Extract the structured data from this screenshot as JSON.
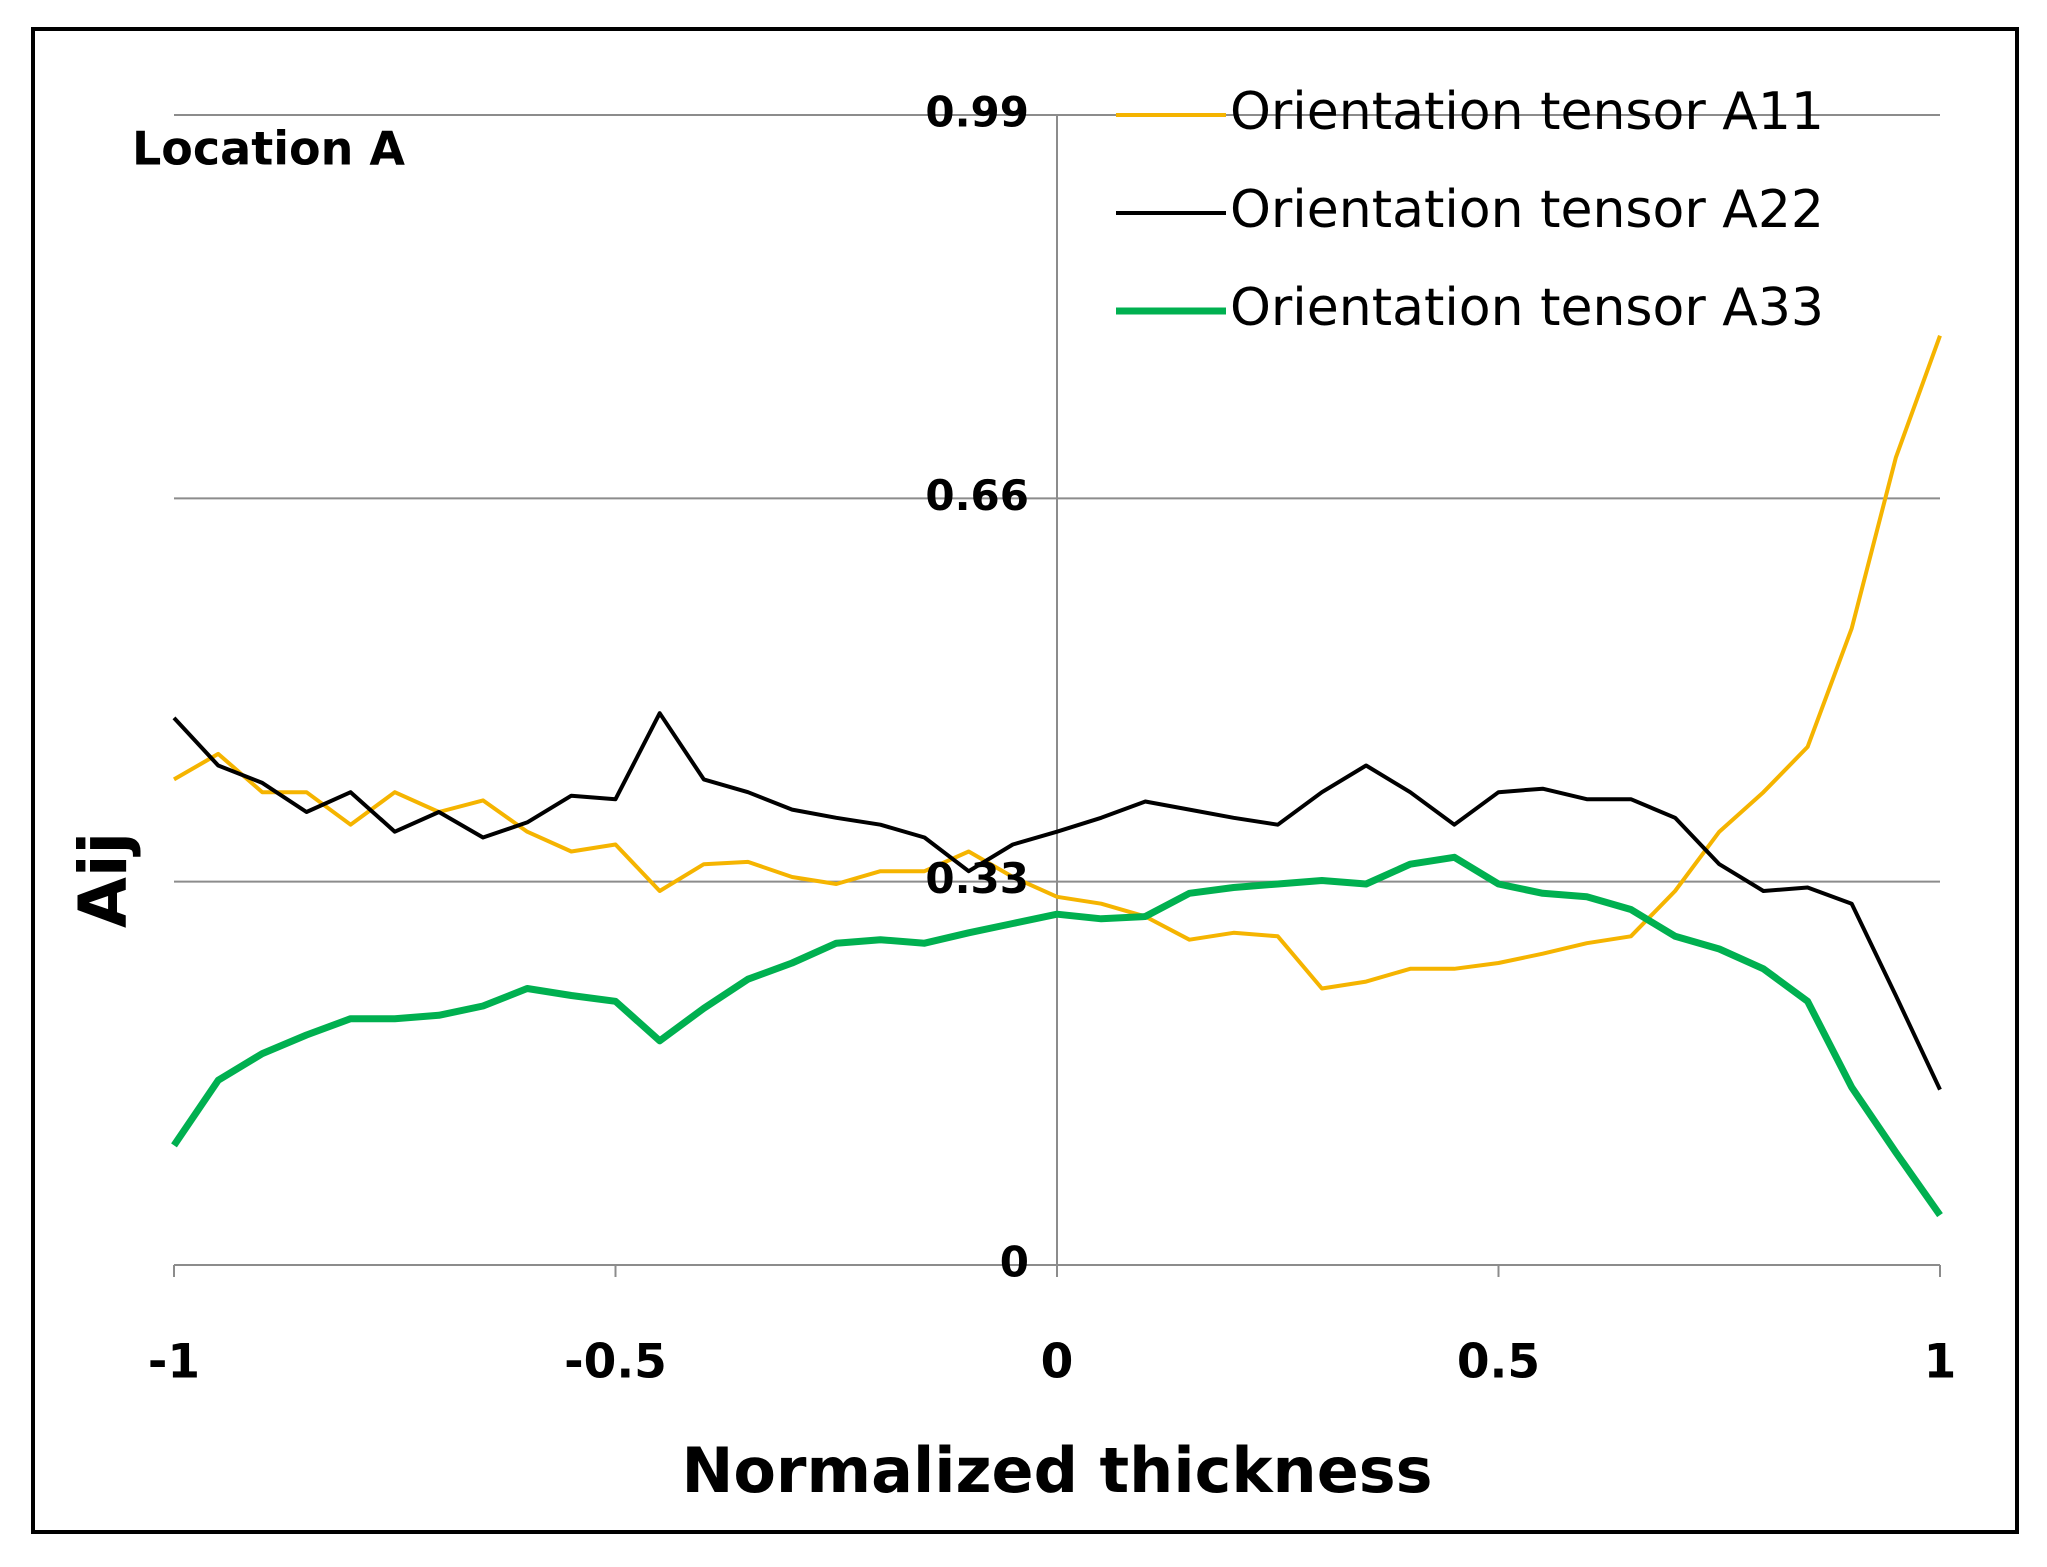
{
  "chart_data": {
    "type": "line",
    "annotation": "Location A",
    "xlabel": "Normalized thickness",
    "ylabel": "Aij",
    "x": [
      -1,
      -0.95,
      -0.9,
      -0.85,
      -0.8,
      -0.75,
      -0.7,
      -0.65,
      -0.6,
      -0.55,
      -0.5,
      -0.45,
      -0.4,
      -0.35,
      -0.3,
      -0.25,
      -0.2,
      -0.15,
      -0.1,
      -0.05,
      0,
      0.05,
      0.1,
      0.15,
      0.2,
      0.25,
      0.3,
      0.35,
      0.4,
      0.45,
      0.5,
      0.55,
      0.6,
      0.65,
      0.7,
      0.75,
      0.8,
      0.85,
      0.9,
      0.95,
      1
    ],
    "series": [
      {
        "name": "Orientation tensor A11",
        "color": "#f5b400",
        "values": [
          0.418,
          0.44,
          0.407,
          0.407,
          0.379,
          0.407,
          0.39,
          0.4,
          0.373,
          0.356,
          0.362,
          0.322,
          0.345,
          0.347,
          0.334,
          0.328,
          0.339,
          0.339,
          0.356,
          0.334,
          0.317,
          0.311,
          0.3,
          0.28,
          0.286,
          0.283,
          0.238,
          0.244,
          0.255,
          0.255,
          0.26,
          0.268,
          0.277,
          0.283,
          0.322,
          0.373,
          0.407,
          0.446,
          0.548,
          0.695,
          0.8
        ]
      },
      {
        "name": "Orientation tensor A22",
        "color": "#000000",
        "values": [
          0.471,
          0.43,
          0.415,
          0.39,
          0.407,
          0.373,
          0.39,
          0.368,
          0.381,
          0.404,
          0.401,
          0.475,
          0.418,
          0.407,
          0.392,
          0.385,
          0.379,
          0.368,
          0.339,
          0.362,
          0.373,
          0.385,
          0.399,
          0.392,
          0.385,
          0.379,
          0.407,
          0.43,
          0.407,
          0.379,
          0.407,
          0.41,
          0.401,
          0.401,
          0.385,
          0.345,
          0.322,
          0.325,
          0.311,
          0.232,
          0.151
        ]
      },
      {
        "name": "Orientation tensor A33",
        "color": "#00b050",
        "values": [
          0.103,
          0.159,
          0.182,
          0.198,
          0.212,
          0.212,
          0.215,
          0.223,
          0.238,
          0.232,
          0.227,
          0.193,
          0.221,
          0.246,
          0.26,
          0.277,
          0.28,
          0.277,
          0.286,
          0.294,
          0.302,
          0.298,
          0.3,
          0.32,
          0.325,
          0.328,
          0.331,
          0.328,
          0.345,
          0.351,
          0.328,
          0.32,
          0.317,
          0.306,
          0.283,
          0.272,
          0.255,
          0.227,
          0.153,
          0.097,
          0.043
        ]
      }
    ],
    "xlim": [
      -1,
      1
    ],
    "xticks": [
      -1,
      -0.5,
      0,
      0.5,
      1
    ],
    "ylim": [
      0,
      0.99
    ],
    "yticks": [
      0,
      0.33,
      0.66,
      0.99
    ],
    "grid": true,
    "legend": "upper right"
  }
}
